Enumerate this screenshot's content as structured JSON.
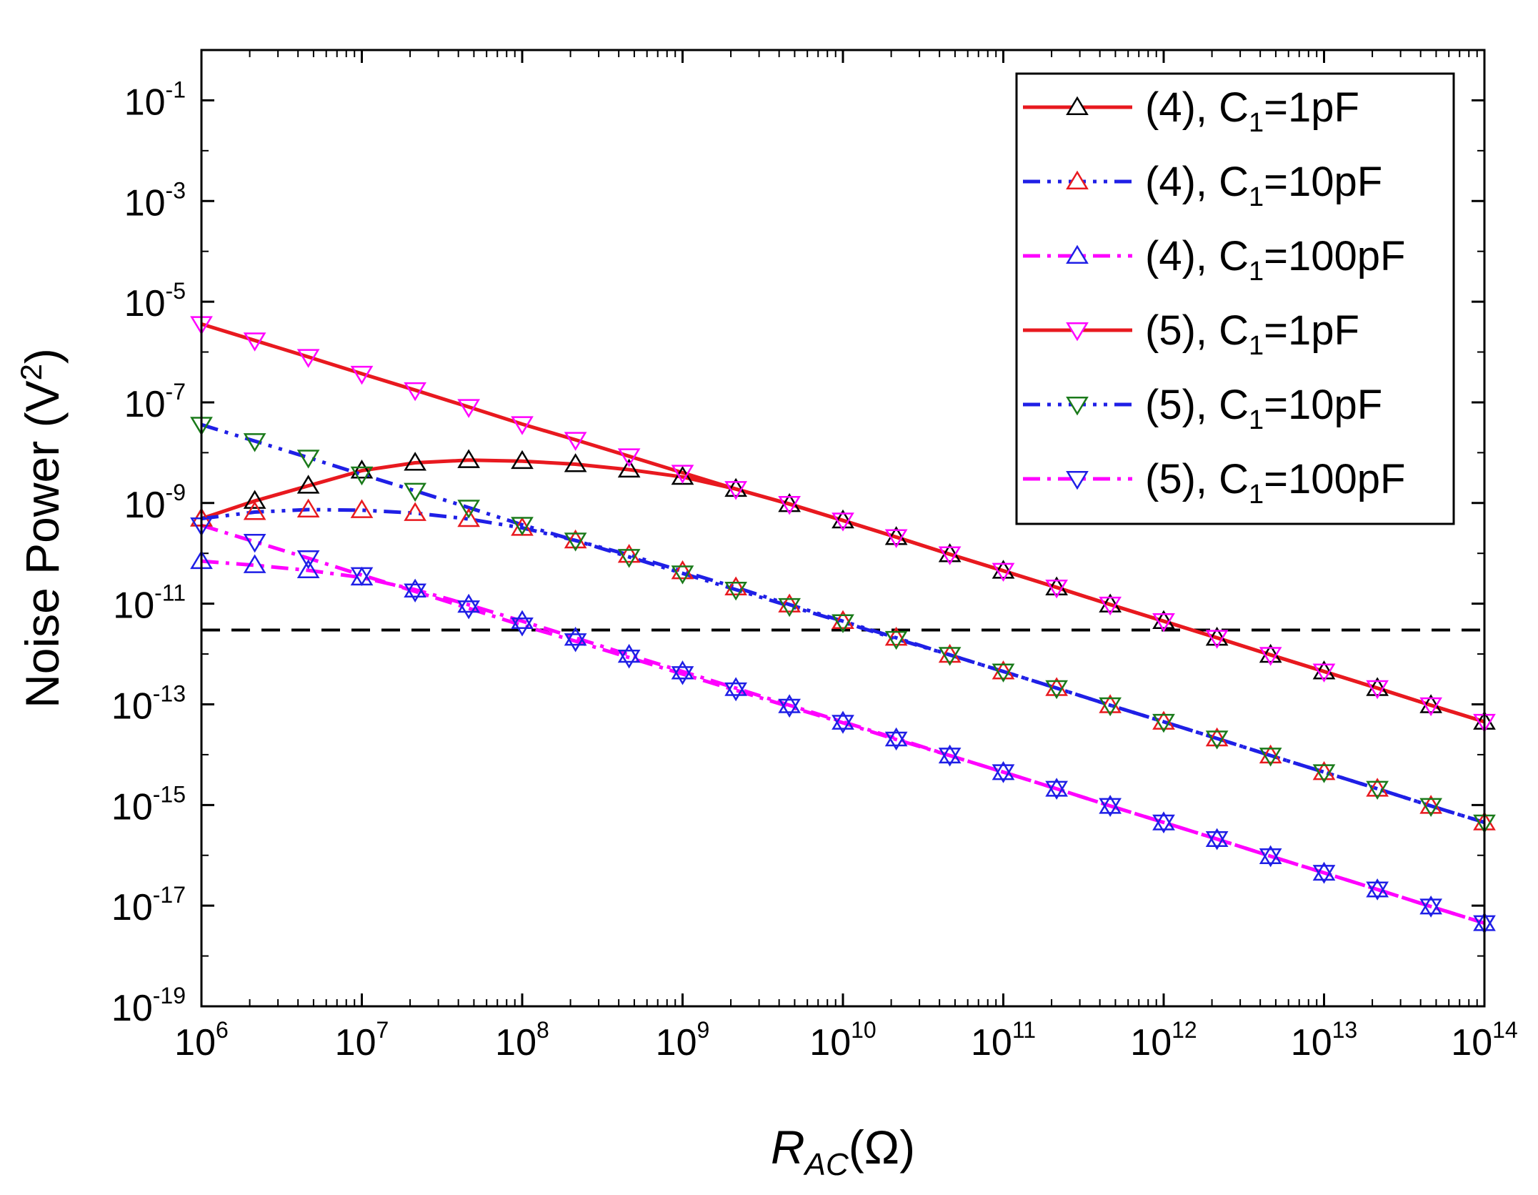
{
  "chart_data": {
    "type": "line",
    "xscale": "log",
    "yscale": "log",
    "xlabel": {
      "main": "R",
      "sub": "AC",
      "unit": "(Ω)"
    },
    "ylabel": {
      "main": "Noise Power (V",
      "sup": "2",
      "end": ")"
    },
    "xlim": [
      1000000,
      100000000000000
    ],
    "ylim": [
      1e-19,
      1
    ],
    "x_ticks": [
      {
        "value": 1000000.0,
        "base": "10",
        "exp": "6"
      },
      {
        "value": 10000000.0,
        "base": "10",
        "exp": "7"
      },
      {
        "value": 100000000.0,
        "base": "10",
        "exp": "8"
      },
      {
        "value": 1000000000.0,
        "base": "10",
        "exp": "9"
      },
      {
        "value": 10000000000.0,
        "base": "10",
        "exp": "10"
      },
      {
        "value": 100000000000.0,
        "base": "10",
        "exp": "11"
      },
      {
        "value": 1000000000000.0,
        "base": "10",
        "exp": "12"
      },
      {
        "value": 10000000000000.0,
        "base": "10",
        "exp": "13"
      },
      {
        "value": 100000000000000.0,
        "base": "10",
        "exp": "14"
      }
    ],
    "y_ticks": [
      {
        "value": 0.1,
        "base": "10",
        "exp": "-1"
      },
      {
        "value": 0.001,
        "base": "10",
        "exp": "-3"
      },
      {
        "value": 1e-05,
        "base": "10",
        "exp": "-5"
      },
      {
        "value": 1e-07,
        "base": "10",
        "exp": "-7"
      },
      {
        "value": 1e-09,
        "base": "10",
        "exp": "-9"
      },
      {
        "value": 1e-11,
        "base": "10",
        "exp": "-11"
      },
      {
        "value": 1e-13,
        "base": "10",
        "exp": "-13"
      },
      {
        "value": 1e-15,
        "base": "10",
        "exp": "-15"
      },
      {
        "value": 1e-17,
        "base": "10",
        "exp": "-17"
      },
      {
        "value": 1e-19,
        "base": "10",
        "exp": "-19"
      }
    ],
    "threshold_line": {
      "y": 3e-12,
      "style": "dashed",
      "color": "#000000"
    },
    "marker_x": [
      1000000.0,
      2150000.0,
      4640000.0,
      10000000.0,
      21500000.0,
      46400000.0,
      100000000.0,
      215000000.0,
      464000000.0,
      1000000000.0,
      2150000000.0,
      4640000000.0,
      10000000000.0,
      21500000000.0,
      46400000000.0,
      100000000000.0,
      215000000000.0,
      464000000000.0,
      1000000000000.0,
      2150000000000.0,
      4640000000000.0,
      10000000000000.0,
      21500000000000.0,
      46400000000000.0,
      100000000000000.0
    ],
    "series": [
      {
        "name": "(4), C1=1pF",
        "legend": {
          "prefix": "(4), C",
          "sub": "1",
          "suffix": "=1pF"
        },
        "line_color": "#e8191f",
        "dash": "solid",
        "marker": "triangle-up",
        "marker_color": "#000000",
        "values": [
          4.9e-10,
          1.1e-09,
          2.2e-09,
          4.4e-09,
          6.3e-09,
          7.1e-09,
          6.8e-09,
          5.9e-09,
          4.6e-09,
          3.3e-09,
          1.9e-09,
          9.5e-10,
          4.5e-10,
          2.1e-10,
          9.6e-11,
          4.5e-11,
          2.1e-11,
          9.6e-12,
          4.5e-12,
          2.1e-12,
          9.6e-13,
          4.5e-13,
          2.1e-13,
          9.6e-14,
          4.5e-14
        ]
      },
      {
        "name": "(4), C1=10pF",
        "legend": {
          "prefix": "(4), C",
          "sub": "1",
          "suffix": "=10pF"
        },
        "line_color": "#1f1fe6",
        "dash": "dashdotdot",
        "marker": "triangle-up",
        "marker_color": "#e8191f",
        "values": [
          4.9e-10,
          6.6e-10,
          7.4e-10,
          7.2e-10,
          6.3e-10,
          4.8e-10,
          3.2e-10,
          1.8e-10,
          9.3e-11,
          4.4e-11,
          2.1e-11,
          9.6e-12,
          4.5e-12,
          2.1e-12,
          9.6e-13,
          4.5e-13,
          2.1e-13,
          9.6e-14,
          4.5e-14,
          2.1e-14,
          9.6e-15,
          4.5e-15,
          2.1e-15,
          9.6e-16,
          4.5e-16
        ]
      },
      {
        "name": "(4), C1=100pF",
        "legend": {
          "prefix": "(4), C",
          "sub": "1",
          "suffix": "=100pF"
        },
        "line_color": "#ff00ff",
        "dash": "dashdot",
        "marker": "triangle-up",
        "marker_color": "#1f1fe6",
        "values": [
          7e-11,
          5.8e-11,
          4.6e-11,
          3.3e-11,
          1.9e-11,
          9.5e-12,
          4.5e-12,
          2.1e-12,
          9.6e-13,
          4.5e-13,
          2.1e-13,
          9.6e-14,
          4.5e-14,
          2.1e-14,
          9.6e-15,
          4.5e-15,
          2.1e-15,
          9.6e-16,
          4.5e-16,
          2.1e-16,
          9.6e-17,
          4.5e-17,
          2.1e-17,
          9.6e-18,
          4.5e-18
        ]
      },
      {
        "name": "(5), C1=1pF",
        "legend": {
          "prefix": "(5), C",
          "sub": "1",
          "suffix": "=1pF"
        },
        "line_color": "#e8191f",
        "dash": "solid",
        "marker": "triangle-down",
        "marker_color": "#ff00ff",
        "values": [
          3.6e-06,
          1.7e-06,
          8e-07,
          3.7e-07,
          1.75e-07,
          8.1e-08,
          3.7e-08,
          1.8e-08,
          8.5e-09,
          4e-09,
          1.9e-09,
          9.6e-10,
          4.5e-10,
          2.1e-10,
          9.6e-11,
          4.5e-11,
          2.1e-11,
          9.6e-12,
          4.5e-12,
          2.1e-12,
          9.6e-13,
          4.5e-13,
          2.1e-13,
          9.6e-14,
          4.5e-14
        ]
      },
      {
        "name": "(5), C1=10pF",
        "legend": {
          "prefix": "(5), C",
          "sub": "1",
          "suffix": "=10pF"
        },
        "line_color": "#1f1fe6",
        "dash": "dashdotdot",
        "marker": "triangle-down",
        "marker_color": "#1a7a1a",
        "values": [
          3.6e-08,
          1.7e-08,
          8e-09,
          3.7e-09,
          1.75e-09,
          8.1e-10,
          3.7e-10,
          1.8e-10,
          8.5e-11,
          4e-11,
          1.9e-11,
          9e-12,
          4.3e-12,
          2e-12,
          9.6e-13,
          4.5e-13,
          2.1e-13,
          9.6e-14,
          4.5e-14,
          2.1e-14,
          9.6e-15,
          4.5e-15,
          2.1e-15,
          9.6e-16,
          4.5e-16
        ]
      },
      {
        "name": "(5), C1=100pF",
        "legend": {
          "prefix": "(5), C",
          "sub": "1",
          "suffix": "=100pF"
        },
        "line_color": "#ff00ff",
        "dash": "dashdot",
        "marker": "triangle-down",
        "marker_color": "#1f1fe6",
        "values": [
          3.6e-10,
          1.7e-10,
          8e-11,
          3.7e-11,
          1.75e-11,
          8.1e-12,
          3.7e-12,
          1.8e-12,
          8.5e-13,
          4e-13,
          1.9e-13,
          9e-14,
          4.3e-14,
          2e-14,
          9.6e-15,
          4.5e-15,
          2.1e-15,
          9.6e-16,
          4.5e-16,
          2.1e-16,
          9.6e-17,
          4.5e-17,
          2.1e-17,
          9.6e-18,
          4.5e-18
        ]
      }
    ]
  }
}
